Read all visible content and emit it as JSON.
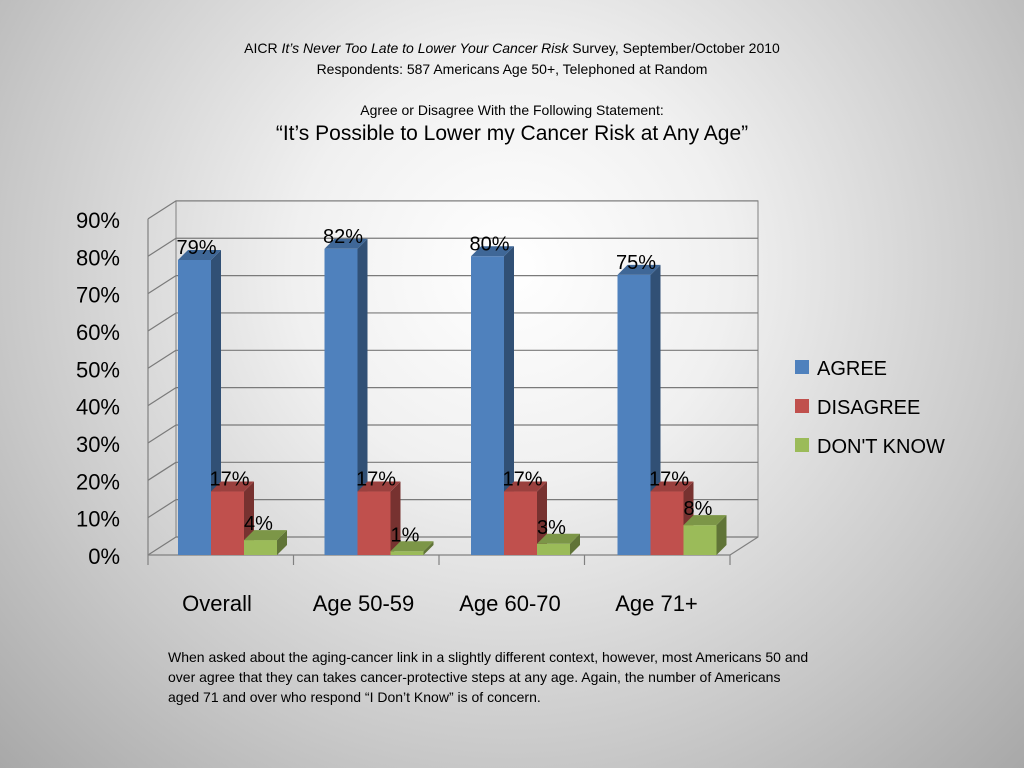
{
  "header": {
    "line1_prefix": "AICR ",
    "line1_italic": "It’s Never Too Late to Lower Your Cancer Risk",
    "line1_suffix": " Survey, September/October 2010",
    "line2": "Respondents: 587 Americans Age 50+, Telephoned at Random",
    "line3": "Agree or Disagree With the Following Statement:",
    "statement": "“It’s Possible to Lower my Cancer Risk at Any Age”"
  },
  "chart_data": {
    "type": "bar",
    "categories": [
      "Overall",
      "Age 50-59",
      "Age 60-70",
      "Age 71+"
    ],
    "series": [
      {
        "name": "AGREE",
        "values": [
          79,
          82,
          80,
          75
        ],
        "labels": [
          "79%",
          "82%",
          "80%",
          "75%"
        ],
        "color": "#4F81BD"
      },
      {
        "name": "DISAGREE",
        "values": [
          17,
          17,
          17,
          17
        ],
        "labels": [
          "17%",
          "17%",
          "17%",
          "17%"
        ],
        "color": "#C0504D"
      },
      {
        "name": "DON'T KNOW",
        "values": [
          4,
          1,
          3,
          8
        ],
        "labels": [
          "4%",
          "1%",
          "3%",
          "8%"
        ],
        "color": "#9BBB59"
      }
    ],
    "yticks": [
      "0%",
      "10%",
      "20%",
      "30%",
      "40%",
      "50%",
      "60%",
      "70%",
      "80%",
      "90%"
    ],
    "ylim": [
      0,
      90
    ],
    "grid": true,
    "legend": "right",
    "style": "3d-clustered-column"
  },
  "caption": [
    "When asked about the aging-cancer link in a slightly different context, however, most Americans 50 and",
    "over agree that they can takes cancer-protective steps at any age.  Again, the number of Americans",
    "aged 71 and over who respond “I Don’t Know” is of concern."
  ]
}
